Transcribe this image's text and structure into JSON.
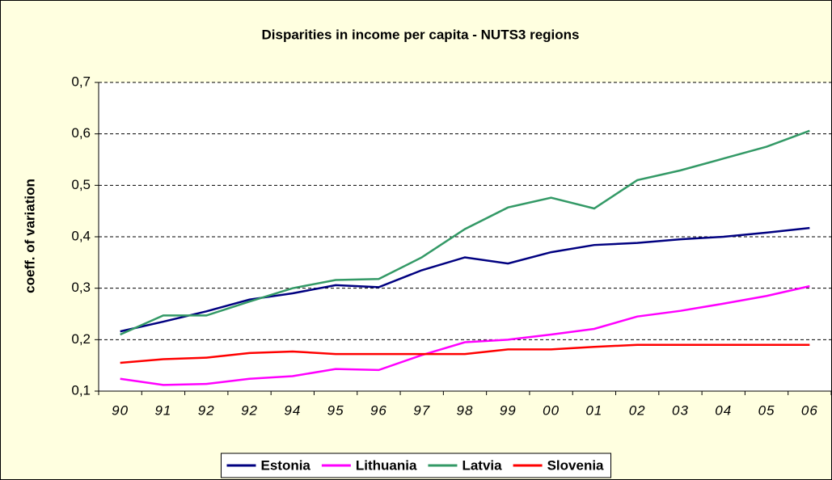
{
  "chart_data": {
    "type": "line",
    "title": "Disparities in income per capita - NUTS3 regions",
    "y_label": "coeff. of variation",
    "categories": [
      "90",
      "91",
      "92",
      "92",
      "94",
      "95",
      "96",
      "97",
      "98",
      "99",
      "00",
      "01",
      "02",
      "03",
      "04",
      "05",
      "06"
    ],
    "ylim": [
      0.1,
      0.7
    ],
    "yticks": [
      {
        "value": 0.1,
        "label": "0,1"
      },
      {
        "value": 0.2,
        "label": "0,2"
      },
      {
        "value": 0.3,
        "label": "0,3"
      },
      {
        "value": 0.4,
        "label": "0,4"
      },
      {
        "value": 0.5,
        "label": "0,5"
      },
      {
        "value": 0.6,
        "label": "0,6"
      },
      {
        "value": 0.7,
        "label": "0,7"
      }
    ],
    "grid": true,
    "legend": "bottom",
    "series": [
      {
        "name": "Estonia",
        "color": "#000080",
        "values": [
          0.216,
          0.235,
          0.255,
          0.278,
          0.29,
          0.306,
          0.302,
          0.335,
          0.36,
          0.348,
          0.37,
          0.384,
          0.388,
          0.395,
          0.4,
          0.408,
          0.417
        ]
      },
      {
        "name": "Lithuania",
        "color": "#ff00ff",
        "values": [
          0.124,
          0.112,
          0.114,
          0.124,
          0.129,
          0.143,
          0.141,
          0.17,
          0.195,
          0.2,
          0.21,
          0.221,
          0.245,
          0.256,
          0.27,
          0.285,
          0.304
        ]
      },
      {
        "name": "Latvia",
        "color": "#339966",
        "values": [
          0.21,
          0.247,
          0.247,
          0.274,
          0.3,
          0.316,
          0.318,
          0.36,
          0.415,
          0.457,
          0.476,
          0.455,
          0.51,
          0.529,
          0.552,
          0.575,
          0.606
        ]
      },
      {
        "name": "Slovenia",
        "color": "#ff0000",
        "values": [
          0.155,
          0.162,
          0.165,
          0.174,
          0.177,
          0.172,
          0.172,
          0.172,
          0.172,
          0.181,
          0.181,
          0.186,
          0.19,
          0.19,
          0.19,
          0.19,
          0.19
        ]
      }
    ]
  }
}
